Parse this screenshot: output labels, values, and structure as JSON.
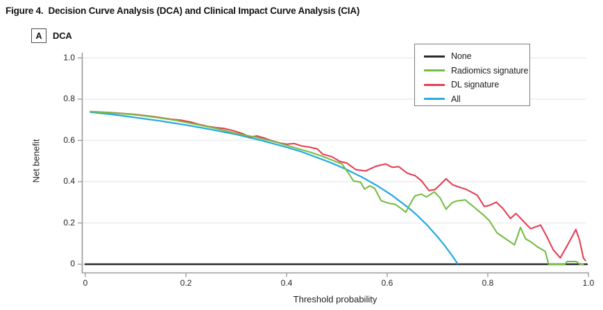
{
  "figure": {
    "title": "Figure 4.  Decision Curve Analysis (DCA) and Clinical Impact Curve Analysis (CIA)",
    "panel_label": "A",
    "panel_name": "DCA"
  },
  "chart_data": {
    "type": "line",
    "title": "DCA",
    "xlabel": "Threshold probability",
    "ylabel": "Net benefit",
    "xlim": [
      0,
      1.0
    ],
    "ylim": [
      -0.04,
      1.0
    ],
    "grid": "horizontal",
    "legend_position": "top-right",
    "x_ticks": [
      0,
      0.2,
      0.4,
      0.6,
      0.8,
      1.0
    ],
    "x_tick_labels": [
      "0",
      "0.2",
      "0.4",
      "0.6",
      "0.8",
      "1.0"
    ],
    "y_ticks": [
      0,
      0.2,
      0.4,
      0.6,
      0.8,
      1.0
    ],
    "y_tick_labels": [
      "0",
      "0.2",
      "0.4",
      "0.6",
      "0.8",
      "1.0"
    ],
    "colors": {
      "grid": "#ececec",
      "spine": "#9b9b9b",
      "text": "#1d1d1d"
    },
    "series": [
      {
        "name": "None",
        "color": "#27292b",
        "stroke_width": 2.6,
        "points": [
          [
            0.0,
            0
          ],
          [
            0.997,
            0
          ]
        ]
      },
      {
        "name": "Radiomics signature",
        "color": "#76bc43",
        "stroke_width": 2.1,
        "points": [
          [
            0.01,
            0.74
          ],
          [
            0.05,
            0.734
          ],
          [
            0.1,
            0.724
          ],
          [
            0.14,
            0.712
          ],
          [
            0.18,
            0.697
          ],
          [
            0.22,
            0.678
          ],
          [
            0.26,
            0.658
          ],
          [
            0.3,
            0.634
          ],
          [
            0.34,
            0.615
          ],
          [
            0.38,
            0.591
          ],
          [
            0.42,
            0.562
          ],
          [
            0.45,
            0.541
          ],
          [
            0.47,
            0.524
          ],
          [
            0.49,
            0.505
          ],
          [
            0.51,
            0.486
          ],
          [
            0.524,
            0.438
          ],
          [
            0.533,
            0.403
          ],
          [
            0.547,
            0.398
          ],
          [
            0.555,
            0.364
          ],
          [
            0.565,
            0.38
          ],
          [
            0.575,
            0.368
          ],
          [
            0.588,
            0.308
          ],
          [
            0.602,
            0.296
          ],
          [
            0.616,
            0.29
          ],
          [
            0.629,
            0.268
          ],
          [
            0.637,
            0.252
          ],
          [
            0.647,
            0.298
          ],
          [
            0.655,
            0.331
          ],
          [
            0.668,
            0.34
          ],
          [
            0.678,
            0.326
          ],
          [
            0.694,
            0.351
          ],
          [
            0.705,
            0.322
          ],
          [
            0.717,
            0.267
          ],
          [
            0.729,
            0.298
          ],
          [
            0.737,
            0.306
          ],
          [
            0.755,
            0.312
          ],
          [
            0.772,
            0.278
          ],
          [
            0.793,
            0.235
          ],
          [
            0.803,
            0.211
          ],
          [
            0.818,
            0.153
          ],
          [
            0.838,
            0.119
          ],
          [
            0.853,
            0.094
          ],
          [
            0.865,
            0.178
          ],
          [
            0.875,
            0.123
          ],
          [
            0.886,
            0.108
          ],
          [
            0.898,
            0.085
          ],
          [
            0.914,
            0.063
          ],
          [
            0.921,
            0.0
          ],
          [
            0.953,
            0.0
          ],
          [
            0.958,
            0.013
          ],
          [
            0.976,
            0.013
          ],
          [
            0.983,
            0.0
          ],
          [
            0.99,
            0.0
          ]
        ]
      },
      {
        "name": "DL signature",
        "color": "#e63e52",
        "stroke_width": 2.1,
        "points": [
          [
            0.01,
            0.74
          ],
          [
            0.05,
            0.735
          ],
          [
            0.1,
            0.726
          ],
          [
            0.14,
            0.714
          ],
          [
            0.17,
            0.703
          ],
          [
            0.19,
            0.698
          ],
          [
            0.21,
            0.689
          ],
          [
            0.225,
            0.678
          ],
          [
            0.244,
            0.668
          ],
          [
            0.26,
            0.662
          ],
          [
            0.275,
            0.658
          ],
          [
            0.29,
            0.65
          ],
          [
            0.302,
            0.641
          ],
          [
            0.313,
            0.633
          ],
          [
            0.327,
            0.616
          ],
          [
            0.341,
            0.622
          ],
          [
            0.355,
            0.612
          ],
          [
            0.368,
            0.601
          ],
          [
            0.386,
            0.588
          ],
          [
            0.4,
            0.582
          ],
          [
            0.415,
            0.585
          ],
          [
            0.43,
            0.573
          ],
          [
            0.445,
            0.568
          ],
          [
            0.461,
            0.559
          ],
          [
            0.472,
            0.533
          ],
          [
            0.49,
            0.521
          ],
          [
            0.506,
            0.498
          ],
          [
            0.52,
            0.49
          ],
          [
            0.538,
            0.458
          ],
          [
            0.557,
            0.452
          ],
          [
            0.578,
            0.475
          ],
          [
            0.597,
            0.486
          ],
          [
            0.61,
            0.47
          ],
          [
            0.623,
            0.473
          ],
          [
            0.64,
            0.441
          ],
          [
            0.655,
            0.43
          ],
          [
            0.668,
            0.405
          ],
          [
            0.683,
            0.357
          ],
          [
            0.695,
            0.362
          ],
          [
            0.705,
            0.385
          ],
          [
            0.717,
            0.414
          ],
          [
            0.73,
            0.385
          ],
          [
            0.745,
            0.372
          ],
          [
            0.757,
            0.363
          ],
          [
            0.779,
            0.334
          ],
          [
            0.793,
            0.28
          ],
          [
            0.803,
            0.285
          ],
          [
            0.817,
            0.301
          ],
          [
            0.83,
            0.27
          ],
          [
            0.845,
            0.222
          ],
          [
            0.856,
            0.246
          ],
          [
            0.87,
            0.21
          ],
          [
            0.885,
            0.172
          ],
          [
            0.905,
            0.19
          ],
          [
            0.918,
            0.13
          ],
          [
            0.93,
            0.07
          ],
          [
            0.944,
            0.031
          ],
          [
            0.96,
            0.1
          ],
          [
            0.975,
            0.168
          ],
          [
            0.982,
            0.12
          ],
          [
            0.99,
            0.03
          ],
          [
            0.994,
            0.018
          ]
        ]
      },
      {
        "name": "All",
        "color": "#29aae2",
        "stroke_width": 2.3,
        "points": [
          [
            0.01,
            0.737
          ],
          [
            0.05,
            0.727
          ],
          [
            0.1,
            0.711
          ],
          [
            0.15,
            0.694
          ],
          [
            0.2,
            0.675
          ],
          [
            0.25,
            0.653
          ],
          [
            0.3,
            0.629
          ],
          [
            0.35,
            0.6
          ],
          [
            0.4,
            0.567
          ],
          [
            0.43,
            0.545
          ],
          [
            0.46,
            0.518
          ],
          [
            0.49,
            0.49
          ],
          [
            0.52,
            0.458
          ],
          [
            0.55,
            0.422
          ],
          [
            0.58,
            0.381
          ],
          [
            0.61,
            0.333
          ],
          [
            0.64,
            0.278
          ],
          [
            0.66,
            0.236
          ],
          [
            0.68,
            0.188
          ],
          [
            0.7,
            0.133
          ],
          [
            0.715,
            0.088
          ],
          [
            0.728,
            0.045
          ],
          [
            0.74,
            0.003
          ]
        ]
      }
    ]
  }
}
